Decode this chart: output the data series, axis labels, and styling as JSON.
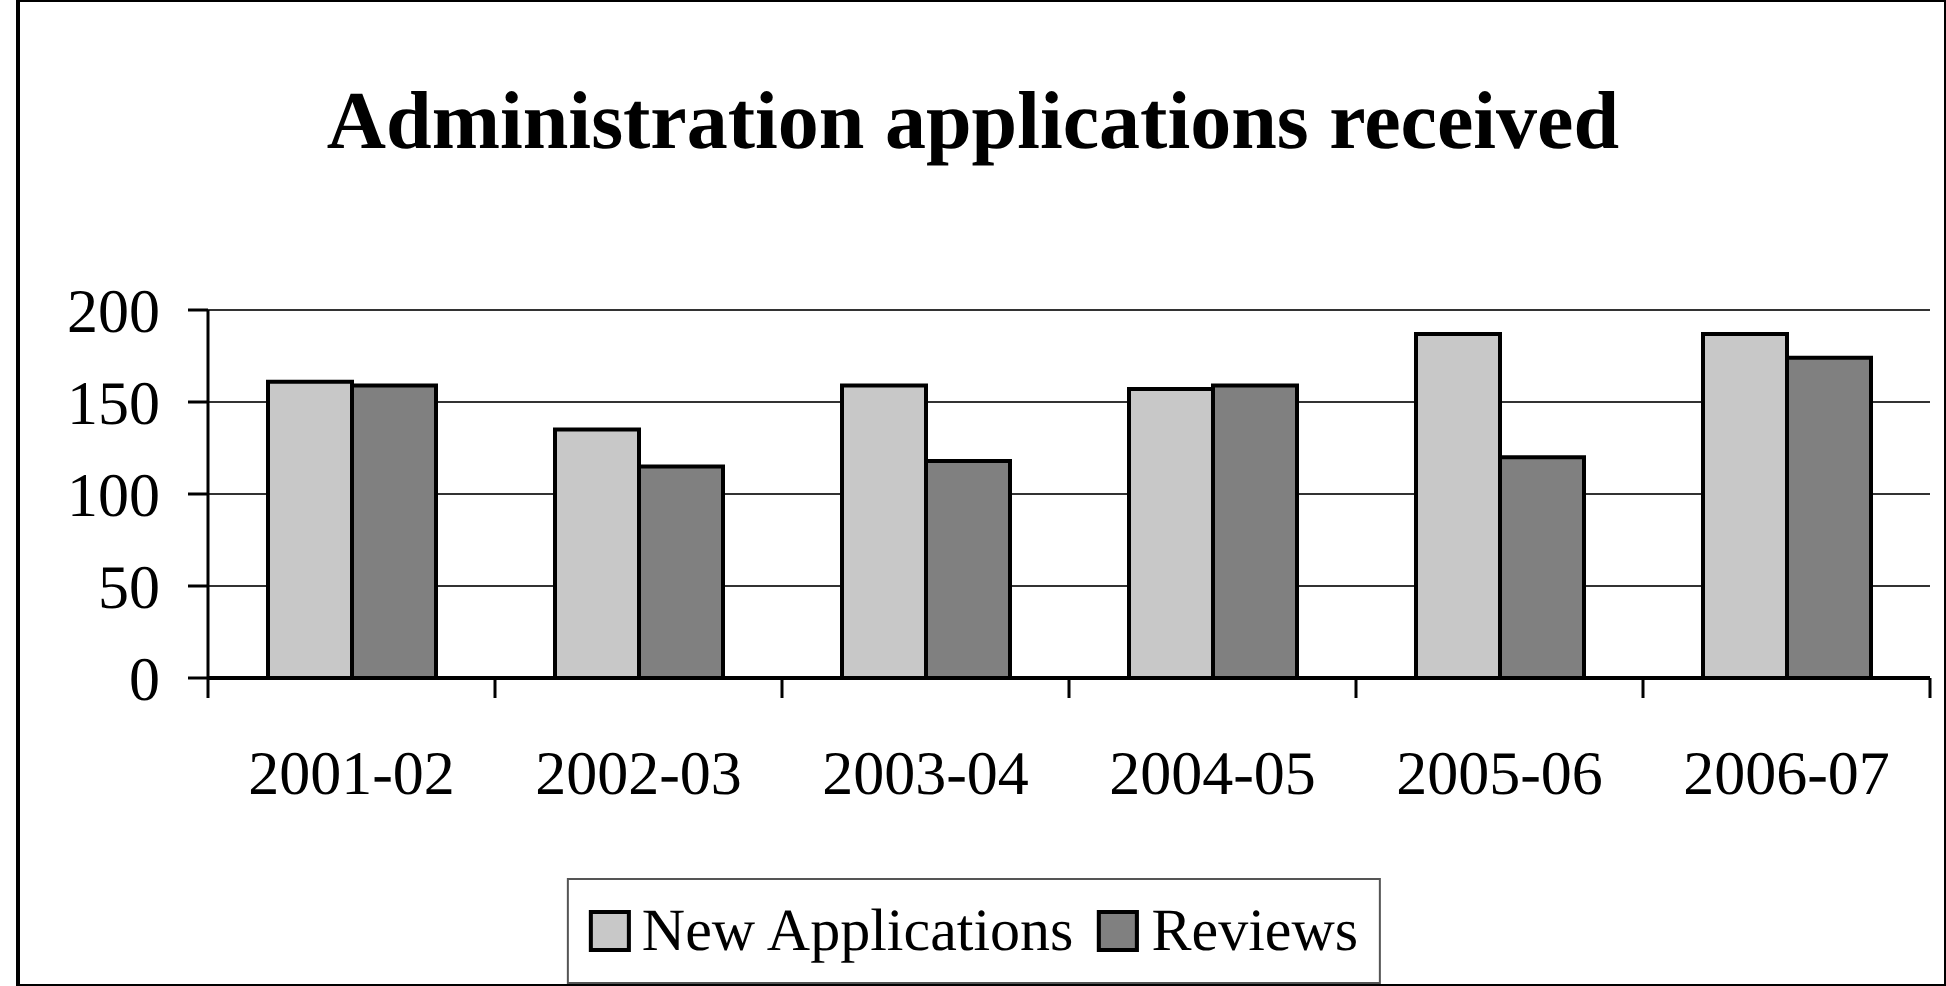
{
  "chart_data": {
    "type": "bar",
    "title": "Administration applications received",
    "categories": [
      "2001-02",
      "2002-03",
      "2003-04",
      "2004-05",
      "2005-06",
      "2006-07"
    ],
    "series": [
      {
        "name": "New Applications",
        "color": "#c8c8c8",
        "values": [
          161,
          135,
          159,
          157,
          187,
          187
        ]
      },
      {
        "name": "Reviews",
        "color": "#808080",
        "values": [
          159,
          115,
          118,
          159,
          120,
          174
        ]
      }
    ],
    "ylim": [
      0,
      200
    ],
    "yticks": [
      0,
      50,
      100,
      150,
      200
    ],
    "grid": "y",
    "legend": "bottom"
  }
}
